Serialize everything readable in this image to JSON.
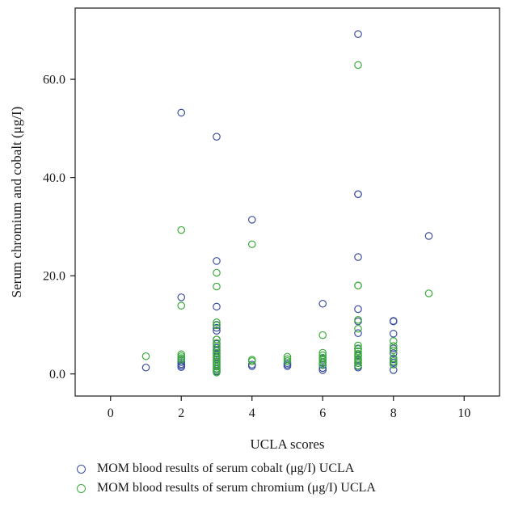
{
  "chart_data": {
    "type": "scatter",
    "xlabel": "UCLA scores",
    "ylabel": "Serum chromium and cobalt (μg/I)",
    "xlim": [
      -1,
      11
    ],
    "ylim": [
      -4.5,
      74.5
    ],
    "x_ticks": [
      0,
      2,
      4,
      6,
      8,
      10
    ],
    "x_tick_labels": [
      "0",
      "2",
      "4",
      "6",
      "8",
      "10"
    ],
    "y_ticks": [
      0,
      20,
      40,
      60
    ],
    "y_tick_labels": [
      "0.0",
      "20.0",
      "40.0",
      "60.0"
    ],
    "grid": false,
    "legend_position": "bottom",
    "series": [
      {
        "name": "MOM blood results of serum cobalt (μg/I) UCLA",
        "color": "#3c4fa0",
        "points": [
          [
            1,
            1.3
          ],
          [
            2,
            53.2
          ],
          [
            2,
            15.6
          ],
          [
            2,
            3.2
          ],
          [
            2,
            2.8
          ],
          [
            2,
            2.4
          ],
          [
            2,
            2.0
          ],
          [
            2,
            1.7
          ],
          [
            2,
            1.4
          ],
          [
            3,
            48.3
          ],
          [
            3,
            23.0
          ],
          [
            3,
            13.7
          ],
          [
            3,
            10.0
          ],
          [
            3,
            9.4
          ],
          [
            3,
            8.8
          ],
          [
            3,
            7.0
          ],
          [
            3,
            6.1
          ],
          [
            3,
            5.3
          ],
          [
            3,
            4.7
          ],
          [
            3,
            4.1
          ],
          [
            3,
            3.5
          ],
          [
            3,
            3.0
          ],
          [
            3,
            2.5
          ],
          [
            3,
            2.0
          ],
          [
            3,
            1.5
          ],
          [
            3,
            1.0
          ],
          [
            3,
            0.5
          ],
          [
            4,
            31.4
          ],
          [
            4,
            1.9
          ],
          [
            4,
            1.6
          ],
          [
            5,
            2.2
          ],
          [
            5,
            1.9
          ],
          [
            5,
            1.6
          ],
          [
            6,
            14.3
          ],
          [
            6,
            3.1
          ],
          [
            6,
            2.4
          ],
          [
            6,
            1.8
          ],
          [
            6,
            1.2
          ],
          [
            6,
            0.8
          ],
          [
            7,
            69.2
          ],
          [
            7,
            36.6
          ],
          [
            7,
            36.6
          ],
          [
            7,
            23.8
          ],
          [
            7,
            13.2
          ],
          [
            7,
            10.7
          ],
          [
            7,
            8.3
          ],
          [
            7,
            5.1
          ],
          [
            7,
            3.8
          ],
          [
            7,
            2.9
          ],
          [
            7,
            2.2
          ],
          [
            7,
            1.6
          ],
          [
            7,
            1.3
          ],
          [
            8,
            10.8
          ],
          [
            8,
            10.7
          ],
          [
            8,
            8.2
          ],
          [
            8,
            5.2
          ],
          [
            8,
            4.2
          ],
          [
            8,
            3.0
          ],
          [
            8,
            2.3
          ],
          [
            8,
            0.8
          ],
          [
            9,
            28.1
          ]
        ]
      },
      {
        "name": "MOM blood results of serum chromium (μg/I) UCLA",
        "color": "#3bab3b",
        "points": [
          [
            1,
            3.6
          ],
          [
            2,
            29.3
          ],
          [
            2,
            13.9
          ],
          [
            2,
            4.0
          ],
          [
            2,
            3.6
          ],
          [
            2,
            3.2
          ],
          [
            2,
            2.9
          ],
          [
            3,
            20.6
          ],
          [
            3,
            17.8
          ],
          [
            3,
            10.5
          ],
          [
            3,
            9.9
          ],
          [
            3,
            7.0
          ],
          [
            3,
            6.3
          ],
          [
            3,
            5.6
          ],
          [
            3,
            4.9
          ],
          [
            3,
            4.3
          ],
          [
            3,
            3.8
          ],
          [
            3,
            3.3
          ],
          [
            3,
            2.9
          ],
          [
            3,
            2.4
          ],
          [
            3,
            1.9
          ],
          [
            3,
            1.5
          ],
          [
            3,
            1.1
          ],
          [
            3,
            0.7
          ],
          [
            3,
            0.3
          ],
          [
            4,
            26.4
          ],
          [
            4,
            2.9
          ],
          [
            4,
            2.6
          ],
          [
            5,
            3.5
          ],
          [
            5,
            3.0
          ],
          [
            5,
            2.6
          ],
          [
            6,
            7.9
          ],
          [
            6,
            4.3
          ],
          [
            6,
            3.8
          ],
          [
            6,
            3.3
          ],
          [
            6,
            2.8
          ],
          [
            6,
            2.3
          ],
          [
            6,
            1.9
          ],
          [
            7,
            62.9
          ],
          [
            7,
            18.0
          ],
          [
            7,
            18.0
          ],
          [
            7,
            11.0
          ],
          [
            7,
            9.2
          ],
          [
            7,
            5.8
          ],
          [
            7,
            5.2
          ],
          [
            7,
            4.6
          ],
          [
            7,
            4.1
          ],
          [
            7,
            3.6
          ],
          [
            7,
            3.1
          ],
          [
            7,
            2.6
          ],
          [
            7,
            2.2
          ],
          [
            7,
            1.7
          ],
          [
            8,
            6.7
          ],
          [
            8,
            5.7
          ],
          [
            8,
            4.8
          ],
          [
            8,
            3.2
          ],
          [
            8,
            2.6
          ],
          [
            8,
            1.9
          ],
          [
            9,
            16.4
          ]
        ]
      }
    ]
  }
}
